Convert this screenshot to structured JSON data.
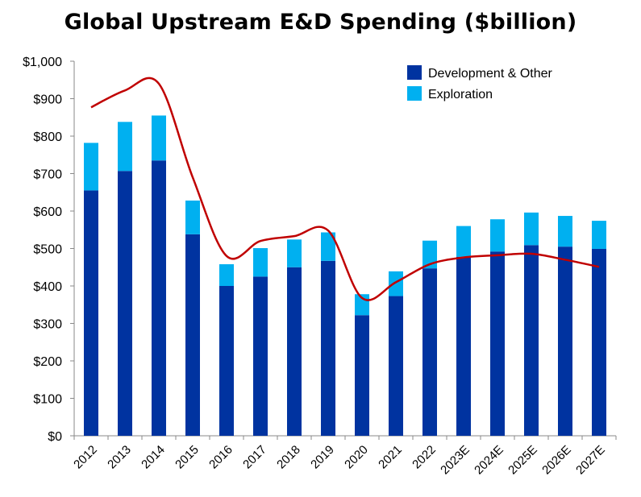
{
  "chart_data": {
    "type": "bar",
    "stacked": true,
    "title": "Global Upstream E&D Spending ($billion)",
    "categories": [
      "2012",
      "2013",
      "2014",
      "2015",
      "2016",
      "2017",
      "2018",
      "2019",
      "2020",
      "2021",
      "2022",
      "2023E",
      "2024E",
      "2025E",
      "2026E",
      "2027E"
    ],
    "series": [
      {
        "name": "Development & Other",
        "color": "#0033a0",
        "values": [
          655,
          707,
          735,
          538,
          400,
          425,
          450,
          467,
          322,
          373,
          447,
          478,
          492,
          509,
          505,
          499
        ]
      },
      {
        "name": "Exploration",
        "color": "#00b0f0",
        "values": [
          127,
          131,
          120,
          90,
          58,
          76,
          74,
          76,
          56,
          66,
          74,
          82,
          86,
          87,
          82,
          75
        ]
      }
    ],
    "trend_line": {
      "color": "#c00000",
      "values": [
        877,
        922,
        940,
        690,
        480,
        520,
        533,
        548,
        368,
        410,
        458,
        476,
        482,
        486,
        470,
        451
      ]
    },
    "y_tick_labels": [
      "$0",
      "$100",
      "$200",
      "$300",
      "$400",
      "$500",
      "$600",
      "$700",
      "$800",
      "$900",
      "$1,000"
    ],
    "ylim": [
      0,
      1000
    ],
    "ytick_step": 100,
    "grid": false,
    "legend_position": "top-right"
  }
}
